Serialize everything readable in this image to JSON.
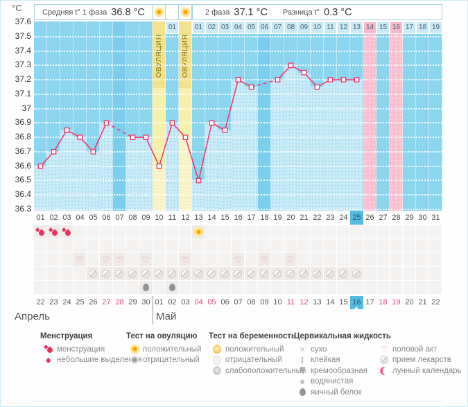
{
  "unit": "°C",
  "header": {
    "phase1_label": "Средняя t° 1 фаза",
    "phase1_value": "36.8 °C",
    "phase2_label": "2 фаза",
    "phase2_value": "37.1 °C",
    "diff_label": "Разница t°",
    "diff_value": "0.3 °C",
    "ovulation_label": "ОВУЛЯЦИЯ"
  },
  "months": {
    "april": "Апрель",
    "may": "Май"
  },
  "colors": {
    "line": "#ED3A6F",
    "chart_bg": "#8CD5EF",
    "bar": "#CAEAF7",
    "no_data_col": "#7CCFEC",
    "ovulation_col": "#F7EFAC",
    "ovulation_header": "#F1E28B",
    "predicted_period": "#F9BECF",
    "day_cell_blue": "#C8E9F6",
    "selected_blue": "#55BBE1",
    "weekend_red": "#E8446F"
  },
  "chart_data": {
    "type": "line",
    "ylabel": "°C",
    "ylim": [
      36.3,
      37.6
    ],
    "ytick_step": 0.1,
    "x": [
      1,
      2,
      3,
      4,
      5,
      6,
      7,
      8,
      9,
      10,
      11,
      12,
      13,
      14,
      15,
      16,
      17,
      18,
      19,
      20,
      21,
      22,
      23,
      24,
      25,
      26,
      27,
      28,
      29,
      30,
      31
    ],
    "temperatures": [
      36.6,
      36.7,
      36.85,
      36.8,
      36.7,
      36.9,
      null,
      36.8,
      36.8,
      36.6,
      36.9,
      36.8,
      36.5,
      36.9,
      36.85,
      37.2,
      37.15,
      null,
      37.2,
      37.3,
      37.25,
      37.15,
      37.2,
      37.2,
      37.2,
      null,
      null,
      null,
      null,
      null,
      null
    ],
    "average_phase1": 36.8,
    "average_phase2": 37.1,
    "difference": 0.3,
    "ovulation_days": [
      10,
      12
    ],
    "no_data_days": [
      7,
      18
    ],
    "predicted_menstruation_days": [
      26,
      28
    ],
    "selected_cycle_day": 25,
    "grid": true
  },
  "days": [
    {
      "c": "01",
      "d": "22",
      "dpo": "",
      "type": "normal",
      "red": false,
      "sel": false,
      "ic": [
        "mens"
      ]
    },
    {
      "c": "02",
      "d": "23",
      "dpo": "",
      "type": "normal",
      "red": false,
      "sel": false,
      "ic": [
        "mens"
      ]
    },
    {
      "c": "03",
      "d": "24",
      "dpo": "",
      "type": "normal",
      "red": false,
      "sel": false,
      "ic": [
        "mens"
      ]
    },
    {
      "c": "04",
      "d": "25",
      "dpo": "",
      "type": "normal",
      "red": false,
      "sel": false,
      "ic": [
        "heart"
      ]
    },
    {
      "c": "05",
      "d": "26",
      "dpo": "",
      "type": "normal",
      "red": false,
      "sel": false,
      "ic": [
        "pill"
      ]
    },
    {
      "c": "06",
      "d": "27",
      "dpo": "",
      "type": "normal",
      "red": true,
      "sel": false,
      "ic": [
        "heart",
        "pill"
      ]
    },
    {
      "c": "07",
      "d": "28",
      "dpo": "",
      "type": "missing",
      "red": true,
      "sel": false,
      "ic": [
        "heart",
        "pill"
      ]
    },
    {
      "c": "08",
      "d": "29",
      "dpo": "",
      "type": "normal",
      "red": false,
      "sel": false,
      "ic": [
        "pill"
      ]
    },
    {
      "c": "09",
      "d": "30",
      "dpo": "",
      "type": "normal",
      "red": false,
      "sel": false,
      "ic": [
        "heart",
        "pill",
        "egg"
      ]
    },
    {
      "c": "10",
      "d": "01",
      "dpo": "",
      "type": "ovulation",
      "red": false,
      "sel": false,
      "ic": [
        "pill"
      ]
    },
    {
      "c": "11",
      "d": "02",
      "dpo": "01",
      "type": "normal",
      "red": false,
      "sel": false,
      "ic": [
        "pill",
        "egg"
      ]
    },
    {
      "c": "12",
      "d": "03",
      "dpo": "",
      "type": "ovulation",
      "red": false,
      "sel": false,
      "ic": [
        "heart",
        "pill"
      ]
    },
    {
      "c": "13",
      "d": "04",
      "dpo": "01",
      "type": "normal",
      "red": true,
      "sel": false,
      "ic": [
        "sun",
        "pill"
      ]
    },
    {
      "c": "14",
      "d": "05",
      "dpo": "02",
      "type": "normal",
      "red": true,
      "sel": false,
      "ic": [
        "pill"
      ]
    },
    {
      "c": "15",
      "d": "06",
      "dpo": "03",
      "type": "normal",
      "red": false,
      "sel": false,
      "ic": [
        "pill"
      ]
    },
    {
      "c": "16",
      "d": "07",
      "dpo": "04",
      "type": "normal",
      "red": false,
      "sel": false,
      "ic": [
        "heart",
        "pill"
      ]
    },
    {
      "c": "17",
      "d": "08",
      "dpo": "05",
      "type": "normal",
      "red": false,
      "sel": false,
      "ic": [
        "pill"
      ]
    },
    {
      "c": "18",
      "d": "09",
      "dpo": "06",
      "type": "missing",
      "red": false,
      "sel": false,
      "ic": [
        "heart",
        "pill"
      ]
    },
    {
      "c": "19",
      "d": "10",
      "dpo": "07",
      "type": "normal",
      "red": false,
      "sel": false,
      "ic": [
        "pill"
      ]
    },
    {
      "c": "20",
      "d": "11",
      "dpo": "08",
      "type": "normal",
      "red": true,
      "sel": false,
      "ic": [
        "heart",
        "pill"
      ]
    },
    {
      "c": "21",
      "d": "12",
      "dpo": "09",
      "type": "normal",
      "red": true,
      "sel": false,
      "ic": [
        "pill"
      ]
    },
    {
      "c": "22",
      "d": "13",
      "dpo": "10",
      "type": "normal",
      "red": false,
      "sel": false,
      "ic": [
        "pill"
      ]
    },
    {
      "c": "23",
      "d": "14",
      "dpo": "11",
      "type": "normal",
      "red": false,
      "sel": false,
      "ic": [
        "pill"
      ]
    },
    {
      "c": "24",
      "d": "15",
      "dpo": "12",
      "type": "normal",
      "red": false,
      "sel": false,
      "ic": [
        "pill"
      ]
    },
    {
      "c": "25",
      "d": "16",
      "dpo": "13",
      "type": "normal",
      "red": false,
      "sel": true,
      "ic": [
        "pill"
      ]
    },
    {
      "c": "26",
      "d": "17",
      "dpo": "14",
      "type": "pink",
      "red": false,
      "sel": false,
      "ic": []
    },
    {
      "c": "27",
      "d": "18",
      "dpo": "15",
      "type": "future",
      "red": true,
      "sel": false,
      "ic": []
    },
    {
      "c": "28",
      "d": "19",
      "dpo": "16",
      "type": "pink",
      "red": true,
      "sel": false,
      "ic": []
    },
    {
      "c": "29",
      "d": "20",
      "dpo": "17",
      "type": "future",
      "red": false,
      "sel": false,
      "ic": []
    },
    {
      "c": "30",
      "d": "21",
      "dpo": "18",
      "type": "future",
      "red": false,
      "sel": false,
      "ic": []
    },
    {
      "c": "31",
      "d": "22",
      "dpo": "19",
      "type": "future",
      "red": false,
      "sel": false,
      "ic": []
    }
  ],
  "legend": [
    {
      "title": "Менструация",
      "items": [
        {
          "icon": "mens",
          "label": "менструация"
        },
        {
          "icon": "dropS",
          "label": "небольшие выделения"
        }
      ]
    },
    {
      "title": "Тест на овуляцию",
      "items": [
        {
          "icon": "sun",
          "label": "положительный"
        },
        {
          "icon": "sunNeg",
          "label": "отрицательный"
        }
      ]
    },
    {
      "title": "Тест на беременность",
      "items": [
        {
          "icon": "pregPos",
          "label": "положительный"
        },
        {
          "icon": "pregNeg",
          "label": "отрицательный"
        },
        {
          "icon": "pregWeak",
          "label": "слабоположительный"
        }
      ]
    },
    {
      "title": "Цервикальная жидкость",
      "items": [
        {
          "icon": "dry",
          "label": "сухо"
        },
        {
          "icon": "sticky",
          "label": "клейкая"
        },
        {
          "icon": "creamy",
          "label": "кремообразная"
        },
        {
          "icon": "watery",
          "label": "водянистая"
        },
        {
          "icon": "egg",
          "label": "яичный белок"
        }
      ]
    },
    {
      "title": "",
      "items": [
        {
          "icon": "heart",
          "label": "половой акт"
        },
        {
          "icon": "pill",
          "label": "прием лекарств"
        },
        {
          "icon": "moon",
          "label": "лунный календарь"
        }
      ]
    }
  ]
}
